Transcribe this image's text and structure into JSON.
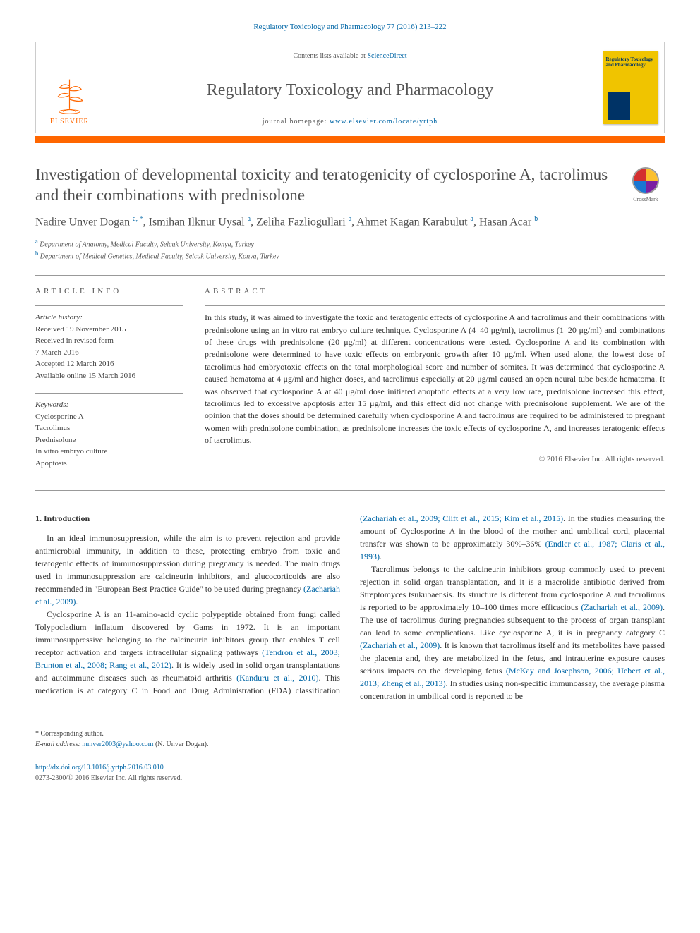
{
  "citation": "Regulatory Toxicology and Pharmacology 77 (2016) 213–222",
  "header": {
    "contents_prefix": "Contents lists available at ",
    "contents_link": "ScienceDirect",
    "journal_title": "Regulatory Toxicology and Pharmacology",
    "homepage_prefix": "journal homepage: ",
    "homepage_url": "www.elsevier.com/locate/yrtph",
    "publisher_logo_text": "ELSEVIER",
    "cover_title": "Regulatory Toxicology and Pharmacology"
  },
  "article_title": "Investigation of developmental toxicity and teratogenicity of cyclosporine A, tacrolimus and their combinations with prednisolone",
  "crossmark_label": "CrossMark",
  "authors_html": "Nadire Unver Dogan <sup>a, *</sup>, Ismihan Ilknur Uysal <sup>a</sup>, Zeliha Fazliogullari <sup>a</sup>, Ahmet Kagan Karabulut <sup>a</sup>, Hasan Acar <sup>b</sup>",
  "affiliations": {
    "a": "Department of Anatomy, Medical Faculty, Selcuk University, Konya, Turkey",
    "b": "Department of Medical Genetics, Medical Faculty, Selcuk University, Konya, Turkey"
  },
  "article_info": {
    "heading": "ARTICLE INFO",
    "history_label": "Article history:",
    "history": [
      "Received 19 November 2015",
      "Received in revised form",
      "7 March 2016",
      "Accepted 12 March 2016",
      "Available online 15 March 2016"
    ],
    "keywords_label": "Keywords:",
    "keywords": [
      "Cyclosporine A",
      "Tacrolimus",
      "Prednisolone",
      "In vitro embryo culture",
      "Apoptosis"
    ]
  },
  "abstract": {
    "heading": "ABSTRACT",
    "text": "In this study, it was aimed to investigate the toxic and teratogenic effects of cyclosporine A and tacrolimus and their combinations with prednisolone using an in vitro rat embryo culture technique. Cyclosporine A (4–40 μg/ml), tacrolimus (1–20 μg/ml) and combinations of these drugs with prednisolone (20 μg/ml) at different concentrations were tested. Cyclosporine A and its combination with prednisolone were determined to have toxic effects on embryonic growth after 10 μg/ml. When used alone, the lowest dose of tacrolimus had embryotoxic effects on the total morphological score and number of somites. It was determined that cyclosporine A caused hematoma at 4 μg/ml and higher doses, and tacrolimus especially at 20 μg/ml caused an open neural tube beside hematoma. It was observed that cyclosporine A at 40 μg/ml dose initiated apoptotic effects at a very low rate, prednisolone increased this effect, tacrolimus led to excessive apoptosis after 15 μg/ml, and this effect did not change with prednisolone supplement. We are of the opinion that the doses should be determined carefully when cyclosporine A and tacrolimus are required to be administered to pregnant women with prednisolone combination, as prednisolone increases the toxic effects of cyclosporine A, and increases teratogenic effects of tacrolimus.",
    "copyright": "© 2016 Elsevier Inc. All rights reserved."
  },
  "section_intro_heading": "1. Introduction",
  "intro_p1": "In an ideal immunosuppression, while the aim is to prevent rejection and provide antimicrobial immunity, in addition to these, protecting embryo from toxic and teratogenic effects of immunosuppression during pregnancy is needed. The main drugs used in immunosuppression are calcineurin inhibitors, and glucocorticoids are also recommended in \"European Best Practice Guide\" to be used during pregnancy ",
  "intro_p1_ref": "(Zachariah et al., 2009)",
  "intro_p1_tail": ".",
  "intro_p2": "Cyclosporine A is an 11-amino-acid cyclic polypeptide obtained from fungi called Tolypocladium inflatum discovered by Gams in 1972. It is an important immunosuppressive belonging to the calcineurin inhibitors group that enables T cell receptor activation and targets intracellular signaling pathways ",
  "intro_p2_ref": "(Tendron et al., 2003; Brunton et al., 2008; Rang et al., 2012)",
  "intro_p2_tail": ". It is widely used in solid organ transplantations and autoimmune diseases such as ",
  "intro_p3a": "rheumatoid arthritis ",
  "intro_p3a_ref": "(Kanduru et al., 2010)",
  "intro_p3b": ". This medication is at category C in Food and Drug Administration (FDA) classification ",
  "intro_p3b_ref": "(Zachariah et al., 2009; Clift et al., 2015; Kim et al., 2015)",
  "intro_p3c": ". In the studies measuring the amount of Cyclosporine A in the blood of the mother and umbilical cord, placental transfer was shown to be approximately 30%–36% ",
  "intro_p3c_ref": "(Endler et al., 1987; Claris et al., 1993)",
  "intro_p3c_tail": ".",
  "intro_p4a": "Tacrolimus belongs to the calcineurin inhibitors group commonly used to prevent rejection in solid organ transplantation, and it is a macrolide antibiotic derived from Streptomyces tsukubaensis. Its structure is different from cyclosporine A and tacrolimus is reported to be approximately 10–100 times more efficacious ",
  "intro_p4a_ref": "(Zachariah et al., 2009)",
  "intro_p4b": ". The use of tacrolimus during pregnancies subsequent to the process of organ transplant can lead to some complications. Like cyclosporine A, it is in pregnancy category C ",
  "intro_p4b_ref": "(Zachariah et al., 2009)",
  "intro_p4c": ". It is known that tacrolimus itself and its metabolites have passed the placenta and, they are metabolized in the fetus, and intrauterine exposure causes serious impacts on the developing fetus ",
  "intro_p4c_ref": "(McKay and Josephson, 2006; Hebert et al., 2013; Zheng et al., 2013)",
  "intro_p4c_tail": ". In studies using non-specific immunoassay, the average plasma concentration in umbilical cord is reported to be",
  "corresponding": {
    "label": "* Corresponding author.",
    "email_label": "E-mail address: ",
    "email": "nunver2003@yahoo.com",
    "email_name": " (N. Unver Dogan)."
  },
  "doi": "http://dx.doi.org/10.1016/j.yrtph.2016.03.010",
  "issn_line": "0273-2300/© 2016 Elsevier Inc. All rights reserved.",
  "colors": {
    "link": "#0066a6",
    "orange_bar": "#ff6600",
    "cover_bg": "#f0c400",
    "text": "#333333",
    "heading": "#505050"
  }
}
